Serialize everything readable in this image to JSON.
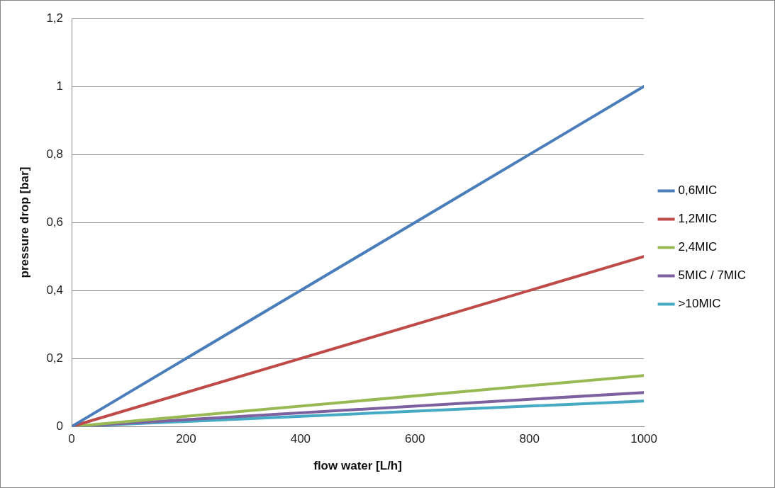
{
  "chart_data": {
    "type": "line",
    "xlabel": "flow water [L/h]",
    "ylabel": "pressure drop [bar]",
    "x": [
      0,
      1000
    ],
    "series": [
      {
        "name": "0,6MIC",
        "color": "#4a7ebb",
        "values": [
          0,
          1
        ]
      },
      {
        "name": "1,2MIC",
        "color": "#be4b48",
        "values": [
          0,
          0.5
        ]
      },
      {
        "name": "2,4MIC",
        "color": "#98b954",
        "values": [
          0,
          0.15
        ]
      },
      {
        "name": "5MIC / 7MIC",
        "color": "#7d60a0",
        "values": [
          0,
          0.1
        ]
      },
      {
        "name": ">10MIC",
        "color": "#46aac5",
        "values": [
          0,
          0.075
        ]
      }
    ],
    "xlim": [
      0,
      1000
    ],
    "xticks": [
      0,
      200,
      400,
      600,
      800,
      1000
    ],
    "ylim": [
      0,
      1.2
    ],
    "yticks": [
      0,
      {
        "value": 0.2,
        "label": "0,2"
      },
      {
        "value": 0.4,
        "label": "0,4"
      },
      {
        "value": 0.6,
        "label": "0,6"
      },
      {
        "value": 0.8,
        "label": "0,8"
      },
      1,
      {
        "value": 1.2,
        "label": "1,2"
      }
    ],
    "grid": "y",
    "legend": "right",
    "marker": "none",
    "line_style": "solid"
  }
}
